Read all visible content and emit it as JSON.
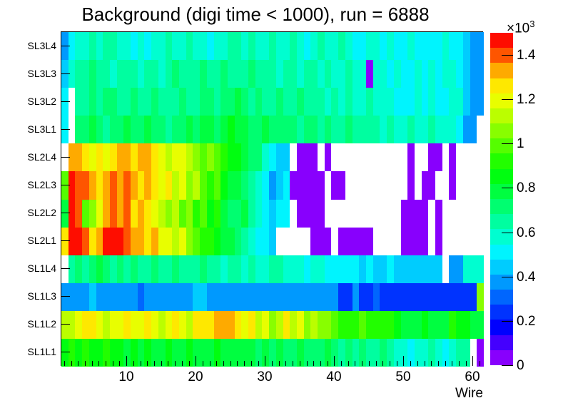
{
  "title": "Background (digi time < 1000), run = 6888",
  "axes": {
    "x_label": "Wire",
    "x_tick_values": [
      10,
      20,
      30,
      40,
      50,
      60
    ],
    "x_tick_labels": [
      "10",
      "20",
      "30",
      "40",
      "50",
      "60"
    ],
    "y_row_labels_top_to_bottom": [
      "SL3L4",
      "SL3L3",
      "SL3L2",
      "SL3L1",
      "SL2L4",
      "SL2L3",
      "SL2L2",
      "SL2L1",
      "SL1L4",
      "SL1L3",
      "SL1L2",
      "SL1L1"
    ]
  },
  "colorbar": {
    "exponent_base": "×10",
    "exponent_power": "3",
    "tick_labels": [
      "0",
      "0.2",
      "0.4",
      "0.6",
      "0.8",
      "1",
      "1.2",
      "1.4"
    ],
    "tick_values": [
      0,
      0.2,
      0.4,
      0.6,
      0.8,
      1.0,
      1.2,
      1.4
    ],
    "vmin": 0,
    "vmax": 1.5,
    "palette_bottom_to_top": [
      "#8800fd",
      "#4400fe",
      "#0000fe",
      "#0033fe",
      "#0066fe",
      "#0099fe",
      "#00ccfe",
      "#00f4fe",
      "#00fed0",
      "#00fea0",
      "#00fe70",
      "#00fe40",
      "#00fe10",
      "#22fe00",
      "#55fe00",
      "#88fe00",
      "#bbfe00",
      "#e8fe00",
      "#fee800",
      "#feaa00",
      "#fe5500",
      "#fe0d00"
    ]
  },
  "chart_data": {
    "type": "heatmap",
    "title": "Background (digi time < 1000), run = 6888",
    "xlabel": "Wire",
    "x_bins": 61,
    "x_range": [
      0.5,
      61.5
    ],
    "value_units": "counts ×10³ (estimated from color scale)",
    "empty_bins_white": true,
    "zlim": [
      0,
      1.5
    ],
    "rows_top_to_bottom": [
      "SL3L4",
      "SL3L3",
      "SL3L2",
      "SL3L1",
      "SL2L4",
      "SL2L3",
      "SL2L2",
      "SL2L1",
      "SL1L4",
      "SL1L3",
      "SL1L2",
      "SL1L1"
    ],
    "matrix_top_to_bottom": [
      [
        0.38,
        0.51,
        0.58,
        0.58,
        0.65,
        0.58,
        0.65,
        0.65,
        0.58,
        0.58,
        0.51,
        0.58,
        0.51,
        0.58,
        0.58,
        0.65,
        0.58,
        0.58,
        0.65,
        0.58,
        0.58,
        0.51,
        0.58,
        0.58,
        0.65,
        0.65,
        0.58,
        0.65,
        0.58,
        0.58,
        0.65,
        0.58,
        0.58,
        0.65,
        0.58,
        0.51,
        0.58,
        0.65,
        0.58,
        0.58,
        0.65,
        0.58,
        0.51,
        0.51,
        0.58,
        0.58,
        0.51,
        0.58,
        0.51,
        0.51,
        0.58,
        0.51,
        0.51,
        0.51,
        0.51,
        0.58,
        0.51,
        0.51,
        0.45,
        0.38,
        0.38
      ],
      [
        0.45,
        0.58,
        0.65,
        0.65,
        0.72,
        0.65,
        0.65,
        0.58,
        0.65,
        0.65,
        0.65,
        0.58,
        0.65,
        0.65,
        0.58,
        0.65,
        0.72,
        0.65,
        0.65,
        0.65,
        0.72,
        0.65,
        0.65,
        0.72,
        0.65,
        0.65,
        0.65,
        0.72,
        0.65,
        0.65,
        0.65,
        0.58,
        0.65,
        0.65,
        0.58,
        0.65,
        0.65,
        0.58,
        0.65,
        0.58,
        0.58,
        0.65,
        0.58,
        0.58,
        0.03,
        0.58,
        0.58,
        0.51,
        0.58,
        0.51,
        0.51,
        0.58,
        0.51,
        0.58,
        0.51,
        0.58,
        0.58,
        0.51,
        0.45,
        0.38,
        0.38
      ],
      [
        0.51,
        null,
        0.65,
        0.65,
        0.72,
        0.65,
        0.72,
        0.72,
        0.65,
        0.65,
        0.72,
        0.65,
        0.65,
        0.72,
        0.65,
        0.65,
        0.65,
        0.72,
        0.65,
        0.65,
        0.72,
        0.72,
        0.65,
        0.72,
        0.72,
        0.78,
        0.72,
        0.65,
        0.72,
        0.65,
        0.65,
        0.72,
        0.65,
        0.65,
        0.72,
        0.65,
        0.65,
        0.65,
        0.58,
        0.65,
        0.58,
        0.65,
        0.58,
        0.58,
        0.65,
        0.58,
        0.58,
        0.58,
        0.51,
        0.51,
        0.51,
        0.58,
        0.51,
        0.58,
        0.51,
        0.51,
        0.58,
        0.58,
        0.45,
        0.38,
        0.38
      ],
      [
        0.51,
        null,
        0.72,
        0.72,
        0.78,
        0.72,
        0.65,
        0.72,
        0.72,
        0.78,
        0.72,
        0.72,
        0.78,
        0.72,
        0.72,
        0.65,
        0.72,
        0.72,
        0.78,
        0.72,
        0.78,
        0.78,
        0.72,
        0.78,
        0.85,
        0.78,
        0.78,
        0.72,
        0.72,
        0.78,
        0.72,
        0.72,
        0.72,
        0.72,
        0.65,
        0.72,
        0.72,
        0.65,
        0.72,
        0.65,
        0.65,
        0.72,
        0.65,
        0.65,
        0.65,
        0.65,
        0.58,
        0.65,
        0.58,
        0.58,
        0.65,
        0.58,
        0.58,
        0.65,
        0.58,
        0.58,
        0.58,
        0.51,
        0.38,
        0.38,
        null
      ],
      [
        null,
        1.33,
        1.33,
        1.26,
        1.19,
        1.26,
        1.19,
        1.26,
        1.33,
        1.33,
        1.26,
        1.33,
        1.33,
        1.26,
        1.19,
        1.12,
        1.19,
        1.19,
        1.12,
        1.06,
        0.99,
        1.06,
        0.99,
        0.92,
        0.85,
        0.85,
        0.78,
        0.72,
        0.72,
        0.58,
        0.51,
        0.45,
        0.45,
        null,
        0.03,
        0.03,
        0.03,
        null,
        0.03,
        null,
        null,
        null,
        null,
        null,
        null,
        null,
        null,
        null,
        null,
        null,
        0.03,
        null,
        null,
        0.03,
        0.03,
        null,
        0.03,
        null,
        null,
        null,
        null
      ],
      [
        0.99,
        1.46,
        1.4,
        1.4,
        1.33,
        1.26,
        1.33,
        1.4,
        1.33,
        1.4,
        1.33,
        1.26,
        1.33,
        1.26,
        1.19,
        1.26,
        1.12,
        1.19,
        1.06,
        1.12,
        0.99,
        0.92,
        0.99,
        0.85,
        0.78,
        0.78,
        0.72,
        0.65,
        0.58,
        0.51,
        0.38,
        0.45,
        0.51,
        0.03,
        0.03,
        0.03,
        0.03,
        0.03,
        null,
        0.03,
        0.03,
        null,
        null,
        null,
        null,
        null,
        null,
        null,
        null,
        null,
        0.03,
        null,
        0.03,
        0.03,
        null,
        null,
        0.03,
        null,
        null,
        null,
        null
      ],
      [
        0.78,
        1.46,
        1.4,
        0.99,
        1.06,
        1.19,
        1.33,
        1.4,
        1.33,
        1.4,
        1.26,
        1.33,
        1.26,
        1.19,
        1.12,
        1.06,
        1.12,
        0.99,
        1.06,
        0.92,
        0.99,
        0.85,
        0.92,
        0.78,
        0.72,
        0.72,
        0.78,
        0.65,
        0.58,
        0.51,
        0.45,
        0.51,
        0.51,
        null,
        0.03,
        0.03,
        0.03,
        0.03,
        null,
        null,
        null,
        null,
        null,
        null,
        null,
        null,
        null,
        null,
        null,
        0.03,
        0.03,
        0.03,
        0.03,
        null,
        0.03,
        null,
        null,
        null,
        null,
        null,
        null
      ],
      [
        1.26,
        1.46,
        1.46,
        1.4,
        1.26,
        1.33,
        1.46,
        1.46,
        1.46,
        1.4,
        1.33,
        1.33,
        1.26,
        1.33,
        1.19,
        1.19,
        1.12,
        1.19,
        1.06,
        0.99,
        0.92,
        0.92,
        0.85,
        0.78,
        0.78,
        0.72,
        0.65,
        0.58,
        0.51,
        0.51,
        0.45,
        null,
        null,
        null,
        null,
        null,
        0.03,
        0.03,
        0.03,
        null,
        0.03,
        0.03,
        0.03,
        0.03,
        0.03,
        null,
        null,
        null,
        null,
        0.03,
        0.03,
        0.03,
        0.03,
        null,
        0.03,
        null,
        null,
        null,
        null,
        null,
        null
      ],
      [
        null,
        0.65,
        0.72,
        0.65,
        0.72,
        0.78,
        0.72,
        0.65,
        0.72,
        0.65,
        0.72,
        0.65,
        0.65,
        0.72,
        0.65,
        0.65,
        0.72,
        0.65,
        0.65,
        0.65,
        0.72,
        0.65,
        0.65,
        0.58,
        0.65,
        0.65,
        0.58,
        0.65,
        0.58,
        0.58,
        0.65,
        0.65,
        0.58,
        0.58,
        0.58,
        0.51,
        0.58,
        0.58,
        0.51,
        0.51,
        0.51,
        0.51,
        0.51,
        0.45,
        0.51,
        0.45,
        0.45,
        0.51,
        0.45,
        0.45,
        0.45,
        0.45,
        0.45,
        0.45,
        0.45,
        null,
        0.38,
        0.38,
        0.58,
        0.58,
        0.58
      ],
      [
        0.38,
        0.38,
        0.38,
        0.38,
        0.45,
        0.38,
        0.38,
        0.38,
        0.38,
        0.38,
        0.38,
        0.31,
        0.38,
        0.38,
        0.38,
        0.38,
        0.38,
        0.38,
        0.38,
        0.45,
        0.45,
        0.38,
        0.38,
        0.38,
        0.38,
        0.38,
        0.38,
        0.38,
        0.38,
        0.38,
        0.38,
        0.38,
        0.38,
        0.38,
        0.38,
        0.38,
        0.38,
        0.38,
        0.38,
        0.38,
        0.24,
        0.24,
        0.38,
        0.24,
        0.24,
        0.31,
        0.24,
        0.24,
        0.24,
        0.24,
        0.24,
        0.24,
        0.24,
        0.24,
        0.24,
        0.24,
        0.24,
        0.24,
        0.24,
        0.24,
        1.06
      ],
      [
        1.12,
        1.12,
        1.19,
        1.26,
        1.26,
        1.19,
        1.12,
        1.19,
        1.19,
        1.26,
        1.19,
        1.19,
        1.26,
        1.19,
        1.12,
        1.19,
        1.26,
        1.19,
        1.12,
        1.26,
        1.26,
        1.26,
        1.33,
        1.33,
        1.33,
        1.26,
        1.19,
        1.26,
        1.12,
        1.19,
        1.06,
        1.12,
        1.26,
        1.12,
        1.19,
        1.06,
        1.12,
        1.06,
        1.06,
        0.99,
        0.92,
        0.92,
        0.92,
        0.99,
        0.92,
        0.92,
        0.92,
        0.92,
        0.85,
        0.78,
        0.78,
        0.78,
        0.85,
        0.78,
        0.78,
        0.78,
        0.92,
        0.85,
        0.85,
        0.78,
        0.78
      ],
      [
        0.85,
        0.92,
        0.85,
        0.92,
        0.85,
        0.85,
        0.92,
        0.85,
        0.85,
        0.78,
        0.85,
        0.78,
        0.85,
        0.78,
        0.78,
        0.85,
        0.78,
        0.78,
        0.85,
        0.78,
        0.78,
        0.78,
        0.85,
        0.78,
        0.78,
        0.78,
        0.78,
        0.78,
        0.72,
        0.78,
        0.72,
        0.78,
        0.72,
        0.72,
        0.78,
        0.72,
        0.72,
        0.72,
        0.78,
        0.72,
        0.65,
        0.72,
        0.65,
        0.72,
        0.65,
        0.65,
        0.72,
        0.65,
        0.58,
        0.58,
        0.51,
        0.58,
        0.58,
        0.65,
        0.58,
        0.51,
        0.58,
        0.65,
        0.65,
        null,
        0.03
      ]
    ]
  }
}
